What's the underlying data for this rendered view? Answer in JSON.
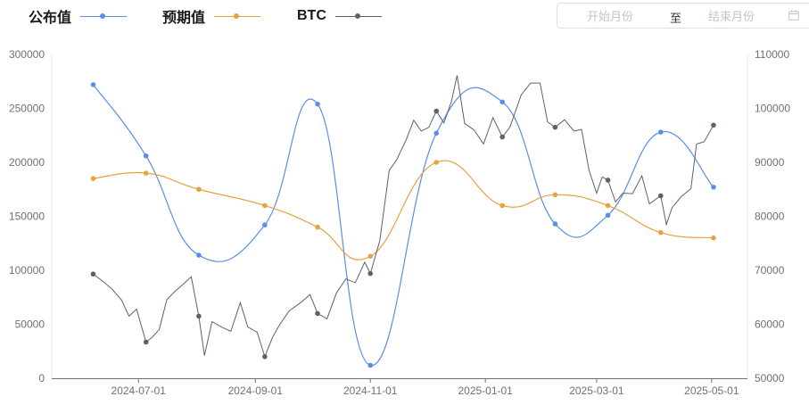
{
  "legend": [
    {
      "label": "公布值",
      "color": "#5b8ee6"
    },
    {
      "label": "预期值",
      "color": "#e6a23c"
    },
    {
      "label": "BTC",
      "color": "#5c6070"
    }
  ],
  "date_picker": {
    "start_placeholder": "开始月份",
    "separator": "至",
    "end_placeholder": "结束月份",
    "icon": "calendar-icon"
  },
  "chart_data": {
    "type": "line",
    "x_axis": {
      "type": "time",
      "range": [
        "2024-05-16",
        "2025-05-20"
      ],
      "tick_labels": [
        "2024-07-01",
        "2024-09-01",
        "2024-11-01",
        "2025-01-01",
        "2025-03-01",
        "2025-05-01"
      ]
    },
    "y_axis_left": {
      "range": [
        0,
        300000
      ],
      "tick_labels": [
        "0",
        "50000",
        "100000",
        "150000",
        "200000",
        "250000",
        "300000"
      ]
    },
    "y_axis_right": {
      "range": [
        50000,
        110000
      ],
      "tick_labels": [
        "50000",
        "60000",
        "70000",
        "80000",
        "90000",
        "100000",
        "110000"
      ]
    },
    "grid": false,
    "legend_position": "top-left",
    "series": [
      {
        "name": "公布值",
        "axis": "left",
        "smooth": true,
        "color": "#5b8ee6",
        "points": [
          [
            "2024-06-07",
            272000
          ],
          [
            "2024-07-05",
            206000
          ],
          [
            "2024-08-02",
            114000
          ],
          [
            "2024-09-06",
            142000
          ],
          [
            "2024-10-04",
            254000
          ],
          [
            "2024-11-01",
            12000
          ],
          [
            "2024-12-06",
            227000
          ],
          [
            "2025-01-10",
            256000
          ],
          [
            "2025-02-07",
            143000
          ],
          [
            "2025-03-07",
            151000
          ],
          [
            "2025-04-04",
            228000
          ],
          [
            "2025-05-02",
            177000
          ]
        ]
      },
      {
        "name": "预期值",
        "axis": "left",
        "smooth": true,
        "color": "#e6a23c",
        "points": [
          [
            "2024-06-07",
            185000
          ],
          [
            "2024-07-05",
            190000
          ],
          [
            "2024-08-02",
            175000
          ],
          [
            "2024-09-06",
            160000
          ],
          [
            "2024-10-04",
            140000
          ],
          [
            "2024-11-01",
            113000
          ],
          [
            "2024-12-06",
            200000
          ],
          [
            "2025-01-10",
            160000
          ],
          [
            "2025-02-07",
            170000
          ],
          [
            "2025-03-07",
            160000
          ],
          [
            "2025-04-04",
            135000
          ],
          [
            "2025-05-02",
            130000
          ]
        ]
      },
      {
        "name": "BTC",
        "axis": "right",
        "smooth": false,
        "color": "#5c6070",
        "points": [
          [
            "2024-06-07",
            69300
          ],
          [
            "2024-06-12",
            68000
          ],
          [
            "2024-06-17",
            66500
          ],
          [
            "2024-06-22",
            64500
          ],
          [
            "2024-06-26",
            61500
          ],
          [
            "2024-06-30",
            62800
          ],
          [
            "2024-07-05",
            56700
          ],
          [
            "2024-07-08",
            57500
          ],
          [
            "2024-07-12",
            59000
          ],
          [
            "2024-07-16",
            64500
          ],
          [
            "2024-07-20",
            66000
          ],
          [
            "2024-07-25",
            67500
          ],
          [
            "2024-07-29",
            68800
          ],
          [
            "2024-08-02",
            61500
          ],
          [
            "2024-08-05",
            54200
          ],
          [
            "2024-08-09",
            60500
          ],
          [
            "2024-08-14",
            59500
          ],
          [
            "2024-08-19",
            58700
          ],
          [
            "2024-08-24",
            64000
          ],
          [
            "2024-08-28",
            59500
          ],
          [
            "2024-09-02",
            58500
          ],
          [
            "2024-09-06",
            54000
          ],
          [
            "2024-09-10",
            57500
          ],
          [
            "2024-09-14",
            60000
          ],
          [
            "2024-09-19",
            62500
          ],
          [
            "2024-09-25",
            64000
          ],
          [
            "2024-09-30",
            65500
          ],
          [
            "2024-10-04",
            62000
          ],
          [
            "2024-10-09",
            61000
          ],
          [
            "2024-10-14",
            65800
          ],
          [
            "2024-10-19",
            68400
          ],
          [
            "2024-10-24",
            67700
          ],
          [
            "2024-10-29",
            71500
          ],
          [
            "2024-11-01",
            69400
          ],
          [
            "2024-11-06",
            75500
          ],
          [
            "2024-11-11",
            88500
          ],
          [
            "2024-11-15",
            90500
          ],
          [
            "2024-11-20",
            94200
          ],
          [
            "2024-11-24",
            97800
          ],
          [
            "2024-11-28",
            95800
          ],
          [
            "2024-12-02",
            96500
          ],
          [
            "2024-12-06",
            99500
          ],
          [
            "2024-12-10",
            97300
          ],
          [
            "2024-12-14",
            101300
          ],
          [
            "2024-12-17",
            106100
          ],
          [
            "2024-12-21",
            97200
          ],
          [
            "2024-12-26",
            96000
          ],
          [
            "2024-12-31",
            93400
          ],
          [
            "2025-01-05",
            98300
          ],
          [
            "2025-01-10",
            94700
          ],
          [
            "2025-01-14",
            96500
          ],
          [
            "2025-01-20",
            102500
          ],
          [
            "2025-01-25",
            104700
          ],
          [
            "2025-01-30",
            104700
          ],
          [
            "2025-02-03",
            97500
          ],
          [
            "2025-02-07",
            96500
          ],
          [
            "2025-02-12",
            97900
          ],
          [
            "2025-02-17",
            95800
          ],
          [
            "2025-02-21",
            96100
          ],
          [
            "2025-02-25",
            88500
          ],
          [
            "2025-03-01",
            84300
          ],
          [
            "2025-03-04",
            87300
          ],
          [
            "2025-03-07",
            86700
          ],
          [
            "2025-03-11",
            82700
          ],
          [
            "2025-03-15",
            84300
          ],
          [
            "2025-03-20",
            84200
          ],
          [
            "2025-03-25",
            87500
          ],
          [
            "2025-03-29",
            82300
          ],
          [
            "2025-04-04",
            83800
          ],
          [
            "2025-04-07",
            78500
          ],
          [
            "2025-04-10",
            81600
          ],
          [
            "2025-04-15",
            83700
          ],
          [
            "2025-04-20",
            85100
          ],
          [
            "2025-04-23",
            93400
          ],
          [
            "2025-04-27",
            93800
          ],
          [
            "2025-05-02",
            96900
          ]
        ]
      }
    ]
  }
}
